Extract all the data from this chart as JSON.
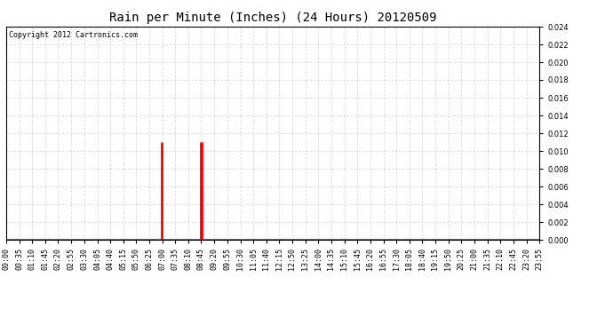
{
  "title": "Rain per Minute (Inches) (24 Hours) 20120509",
  "copyright": "Copyright 2012 Cartronics.com",
  "ylim": [
    0,
    0.024
  ],
  "background_color": "#ffffff",
  "grid_color": "#c8c8c8",
  "line_color": "#ff0000",
  "baseline_color": "#ff0000",
  "title_fontsize": 10,
  "copyright_fontsize": 6,
  "tick_fontsize": 6,
  "total_minutes": 1440,
  "spike1_minute": 420,
  "spike1_value": 0.011,
  "spike2_minute": 525,
  "spike2_value": 0.011,
  "spike2b_minute": 527,
  "spike2b_value": 0.011,
  "xtick_labels": [
    "00:00",
    "00:35",
    "01:10",
    "01:45",
    "02:20",
    "02:55",
    "03:30",
    "04:05",
    "04:40",
    "05:15",
    "05:50",
    "06:25",
    "07:00",
    "07:35",
    "08:10",
    "08:45",
    "09:20",
    "09:55",
    "10:30",
    "11:05",
    "11:40",
    "12:15",
    "12:50",
    "13:25",
    "14:00",
    "14:35",
    "15:10",
    "15:45",
    "16:20",
    "16:55",
    "17:30",
    "18:05",
    "18:40",
    "19:15",
    "19:50",
    "20:25",
    "21:00",
    "21:35",
    "22:10",
    "22:45",
    "23:20",
    "23:55"
  ]
}
